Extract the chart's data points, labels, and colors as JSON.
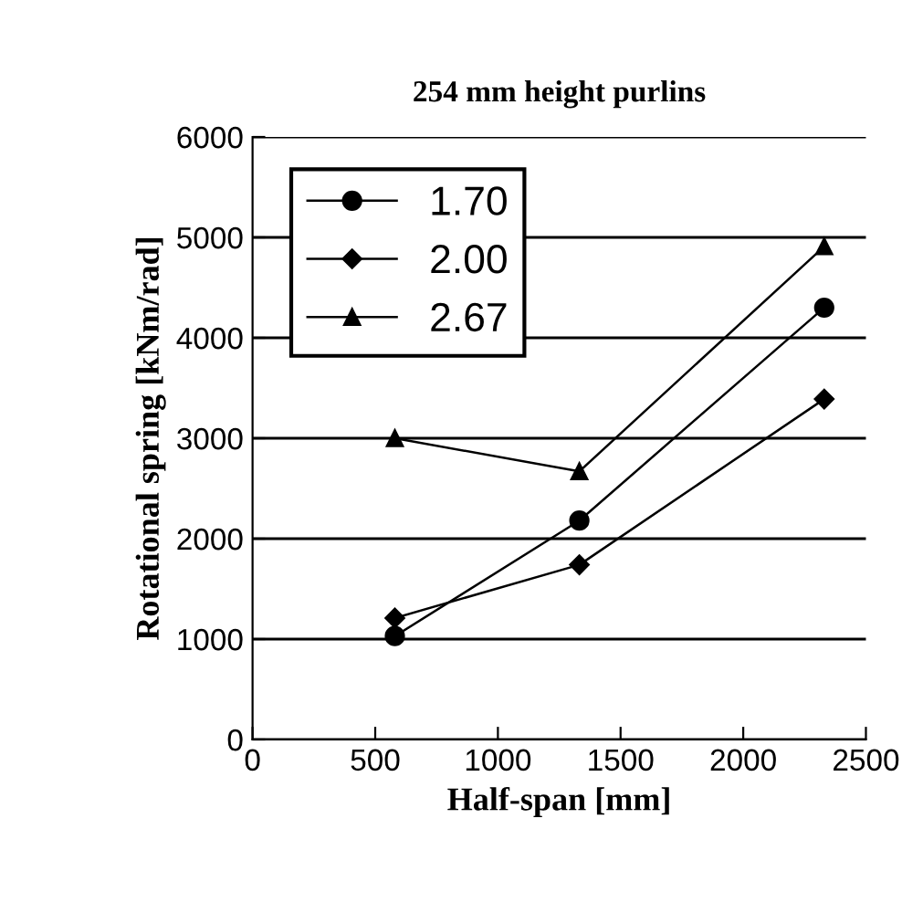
{
  "chart_data": {
    "type": "line",
    "title": "254 mm height purlins",
    "xlabel": "Half-span [mm]",
    "ylabel": "Rotational spring [kNm/rad]",
    "x": [
      580,
      1332,
      2330
    ],
    "series": [
      {
        "name": "1.70",
        "color": "#000000",
        "marker": "circle",
        "values": [
          1030,
          2180,
          4300
        ]
      },
      {
        "name": "2.00",
        "color": "#000000",
        "marker": "diamond",
        "values": [
          1210,
          1740,
          3390
        ]
      },
      {
        "name": "2.67",
        "color": "#000000",
        "marker": "triangle",
        "values": [
          3000,
          2670,
          4910
        ]
      }
    ],
    "xlim": [
      0,
      2500
    ],
    "xticks": [
      0,
      500,
      1000,
      1500,
      2000,
      2500
    ],
    "ylim": [
      0,
      6000
    ],
    "yticks": [
      0,
      1000,
      2000,
      3000,
      4000,
      5000,
      6000
    ],
    "grid": "y",
    "legend": "top left",
    "line_style": "solid"
  }
}
